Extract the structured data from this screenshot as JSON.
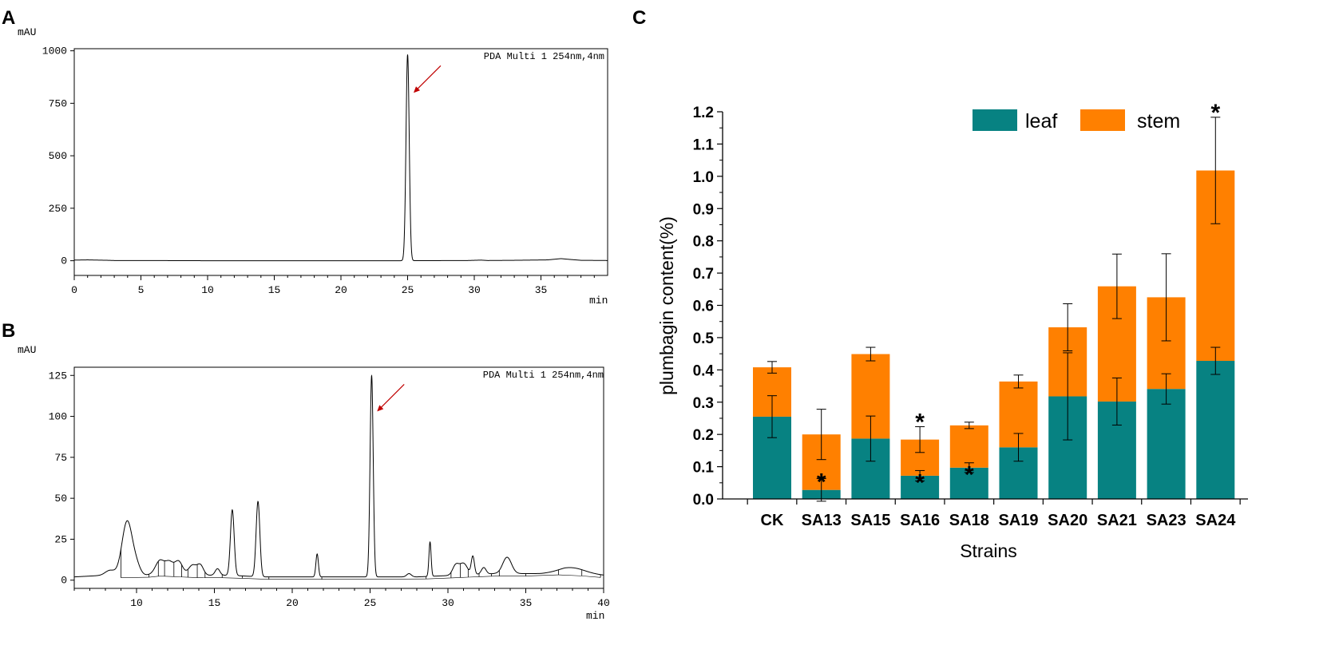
{
  "panels": {
    "a": {
      "letter": "A"
    },
    "b": {
      "letter": "B"
    },
    "c": {
      "letter": "C"
    }
  },
  "chart_data": [
    {
      "id": "A",
      "type": "line",
      "title": "",
      "annotation": "PDA Multi 1 254nm,4nm",
      "ylabel": "mAU",
      "xlabel": "min",
      "xlim": [
        0,
        40
      ],
      "ylim": [
        -70,
        1010
      ],
      "xticks": [
        0,
        5,
        10,
        15,
        20,
        25,
        30,
        35
      ],
      "yticks": [
        0,
        250,
        500,
        750,
        1000
      ],
      "grid": false,
      "baseline": [
        [
          0,
          3
        ],
        [
          1,
          4
        ],
        [
          2.5,
          2
        ],
        [
          3,
          1
        ],
        [
          5,
          1
        ],
        [
          10,
          0
        ],
        [
          20,
          0
        ],
        [
          24.5,
          0
        ],
        [
          29.5,
          1
        ],
        [
          30.5,
          3
        ],
        [
          31,
          1
        ],
        [
          33,
          2
        ],
        [
          35.5,
          4
        ],
        [
          36.5,
          10
        ],
        [
          37.2,
          6
        ],
        [
          38,
          2
        ],
        [
          40,
          1
        ]
      ],
      "peaks": [
        {
          "center": 25.0,
          "height": 982,
          "width": 0.12
        }
      ],
      "arrow_target": {
        "x": 25.45,
        "y": 800
      }
    },
    {
      "id": "B",
      "type": "line",
      "title": "",
      "annotation": "PDA Multi 1 254nm,4nm",
      "ylabel": "mAU",
      "xlabel": "min",
      "xlim": [
        6,
        40
      ],
      "ylim": [
        -5,
        130
      ],
      "xticks": [
        10,
        15,
        20,
        25,
        30,
        35,
        40
      ],
      "yticks": [
        0,
        25,
        50,
        75,
        100,
        125
      ],
      "grid": false,
      "baseline": [
        [
          6,
          2
        ],
        [
          8,
          3
        ],
        [
          9,
          3
        ],
        [
          10.5,
          3
        ],
        [
          11.5,
          4
        ],
        [
          14,
          3
        ],
        [
          16,
          3
        ],
        [
          18,
          2
        ],
        [
          21,
          2
        ],
        [
          25,
          2
        ],
        [
          28,
          2
        ],
        [
          30.5,
          3
        ],
        [
          33,
          4
        ],
        [
          36,
          4
        ],
        [
          37.5,
          5
        ],
        [
          40,
          3
        ]
      ],
      "peaks": [
        {
          "center": 9.4,
          "height": 33,
          "width": 0.33
        },
        {
          "center": 10.0,
          "height": 5,
          "width": 0.25
        },
        {
          "center": 8.3,
          "height": 3,
          "width": 0.3
        },
        {
          "center": 11.5,
          "height": 8,
          "width": 0.28
        },
        {
          "center": 12.1,
          "height": 7,
          "width": 0.25
        },
        {
          "center": 12.7,
          "height": 8,
          "width": 0.25
        },
        {
          "center": 13.6,
          "height": 6,
          "width": 0.25
        },
        {
          "center": 14.1,
          "height": 6,
          "width": 0.2
        },
        {
          "center": 15.2,
          "height": 4,
          "width": 0.15
        },
        {
          "center": 16.15,
          "height": 40,
          "width": 0.12
        },
        {
          "center": 17.8,
          "height": 46,
          "width": 0.12
        },
        {
          "center": 21.6,
          "height": 14,
          "width": 0.08
        },
        {
          "center": 25.1,
          "height": 123,
          "width": 0.1
        },
        {
          "center": 27.5,
          "height": 2,
          "width": 0.15
        },
        {
          "center": 28.85,
          "height": 21,
          "width": 0.07
        },
        {
          "center": 30.5,
          "height": 6,
          "width": 0.2
        },
        {
          "center": 31.0,
          "height": 7,
          "width": 0.25
        },
        {
          "center": 31.6,
          "height": 11,
          "width": 0.1
        },
        {
          "center": 32.3,
          "height": 4,
          "width": 0.15
        },
        {
          "center": 33.8,
          "height": 10,
          "width": 0.28
        },
        {
          "center": 38.0,
          "height": 3,
          "width": 0.8
        }
      ],
      "drop_lines": [
        9.0,
        10.8,
        11.4,
        11.8,
        12.4,
        12.9,
        13.3,
        13.9,
        14.4,
        15.5,
        16.8,
        18.5,
        21.9,
        28.6,
        30.2,
        30.8,
        31.3,
        32.0,
        32.8,
        33.3,
        35.0,
        37.1,
        38.6,
        39.8
      ],
      "arrow_target": {
        "x": 25.45,
        "y": 103
      }
    },
    {
      "id": "C",
      "type": "bar",
      "stacked": true,
      "title": "",
      "xlabel": "Strains",
      "ylabel": "plumbagin content(%)",
      "ylim": [
        0,
        1.2
      ],
      "yticks": [
        "0.0",
        "0.1",
        "0.2",
        "0.3",
        "0.4",
        "0.5",
        "0.6",
        "0.7",
        "0.8",
        "0.9",
        "1.0",
        "1.1",
        "1.2"
      ],
      "categories": [
        "CK",
        "SA13",
        "SA15",
        "SA16",
        "SA18",
        "SA19",
        "SA20",
        "SA21",
        "SA23",
        "SA24"
      ],
      "legend_position": "top-right",
      "series": [
        {
          "name": "leaf",
          "color": "#078282",
          "values": [
            0.255,
            0.028,
            0.187,
            0.072,
            0.097,
            0.16,
            0.318,
            0.302,
            0.341,
            0.428
          ],
          "errors": [
            0.065,
            0.035,
            0.07,
            0.016,
            0.015,
            0.043,
            0.135,
            0.073,
            0.047,
            0.042
          ]
        },
        {
          "name": "stem",
          "color": "#FF8000",
          "values": [
            0.153,
            0.172,
            0.262,
            0.112,
            0.131,
            0.204,
            0.214,
            0.357,
            0.284,
            0.59
          ],
          "errors": [
            0.018,
            0.078,
            0.021,
            0.04,
            0.01,
            0.02,
            0.073,
            0.1,
            0.135,
            0.165
          ]
        }
      ],
      "significance": [
        {
          "category": "SA13",
          "series": "leaf",
          "label": "*"
        },
        {
          "category": "SA16",
          "series": "leaf",
          "label": "*"
        },
        {
          "category": "SA16",
          "series": "stem",
          "label": "*"
        },
        {
          "category": "SA18",
          "series": "leaf",
          "label": "*"
        },
        {
          "category": "SA24",
          "series": "stem",
          "label": "*"
        }
      ]
    }
  ]
}
